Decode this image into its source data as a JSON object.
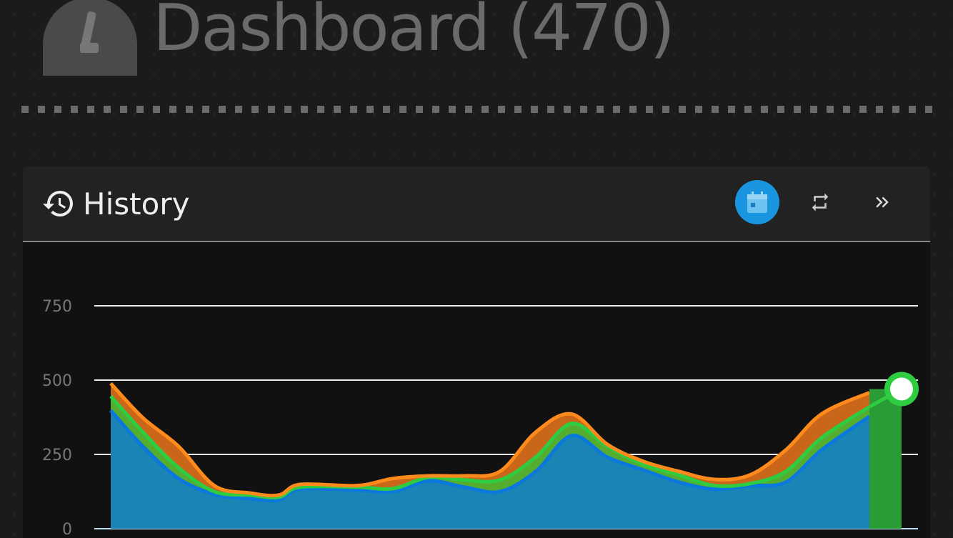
{
  "header": {
    "title": "Dashboard (470)",
    "icon": "gauge-icon"
  },
  "card": {
    "title": "History",
    "icon": "history-icon",
    "buttons": [
      {
        "name": "calendar-button",
        "icon": "calendar-icon",
        "active": true,
        "color": "#1a96e0"
      },
      {
        "name": "repeat-button",
        "icon": "repeat-icon"
      },
      {
        "name": "forward-button",
        "icon": "chevron-double-right-icon"
      }
    ]
  },
  "chart_data": {
    "type": "area",
    "stacked_display": true,
    "ylim": [
      0,
      750
    ],
    "yticks": [
      "0",
      "250",
      "500",
      "750"
    ],
    "grid": true,
    "x": [
      0,
      1,
      2,
      3,
      4,
      5,
      6,
      7,
      8,
      9,
      10,
      11,
      12,
      13,
      14,
      15,
      16,
      17,
      18,
      19,
      20,
      21
    ],
    "series": [
      {
        "color": "#ff8a1c",
        "values": [
          489,
          373,
          277,
          145,
          120,
          113,
          149,
          145,
          169,
          178,
          178,
          193,
          325,
          386,
          284,
          227,
          193,
          166,
          181,
          265,
          386,
          458
        ]
      },
      {
        "color": "#2ecc40",
        "values": [
          446,
          325,
          205,
          125,
          113,
          106,
          140,
          140,
          135,
          173,
          164,
          164,
          241,
          354,
          277,
          217,
          181,
          145,
          152,
          193,
          306,
          410
        ]
      },
      {
        "color": "#0a78dc",
        "values": [
          398,
          277,
          169,
          116,
          101,
          96,
          133,
          130,
          125,
          161,
          140,
          125,
          193,
          313,
          241,
          198,
          157,
          133,
          145,
          157,
          265,
          378
        ]
      }
    ],
    "current": {
      "value": 470,
      "color": "#2ecc40"
    }
  }
}
